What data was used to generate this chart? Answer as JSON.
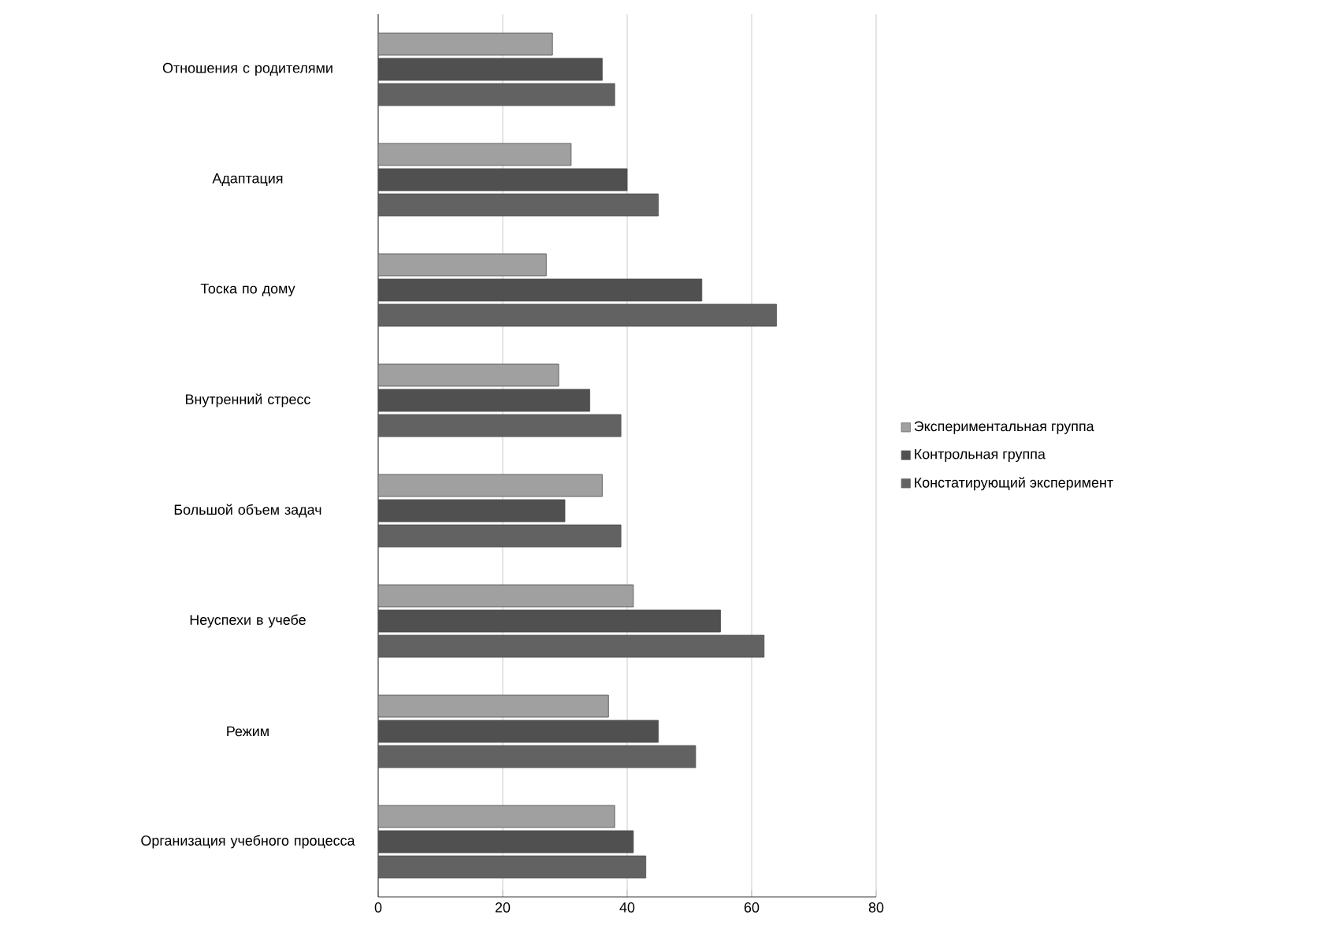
{
  "chart_data": {
    "type": "bar",
    "orientation": "horizontal",
    "categories": [
      "Отношения с родителями",
      "Адаптация",
      "Тоска по дому",
      "Внутренний стресс",
      "Большой объем задач",
      "Неуспехи в учебе",
      "Режим",
      "Организация учебного процесса"
    ],
    "series": [
      {
        "name": "Экспериментальная группа",
        "color": "#a0a0a0",
        "values": [
          28,
          31,
          27,
          29,
          36,
          41,
          37,
          38
        ]
      },
      {
        "name": "Контрольная группа",
        "color": "#505050",
        "values": [
          36,
          40,
          52,
          34,
          30,
          55,
          45,
          41
        ]
      },
      {
        "name": "Констатирующий эксперимент",
        "color": "#626262",
        "values": [
          38,
          45,
          64,
          39,
          39,
          62,
          51,
          43
        ]
      }
    ],
    "xlim": [
      0,
      80
    ],
    "xticks": [
      0,
      20,
      40,
      60,
      80
    ],
    "grid": "x",
    "legend": "right"
  }
}
